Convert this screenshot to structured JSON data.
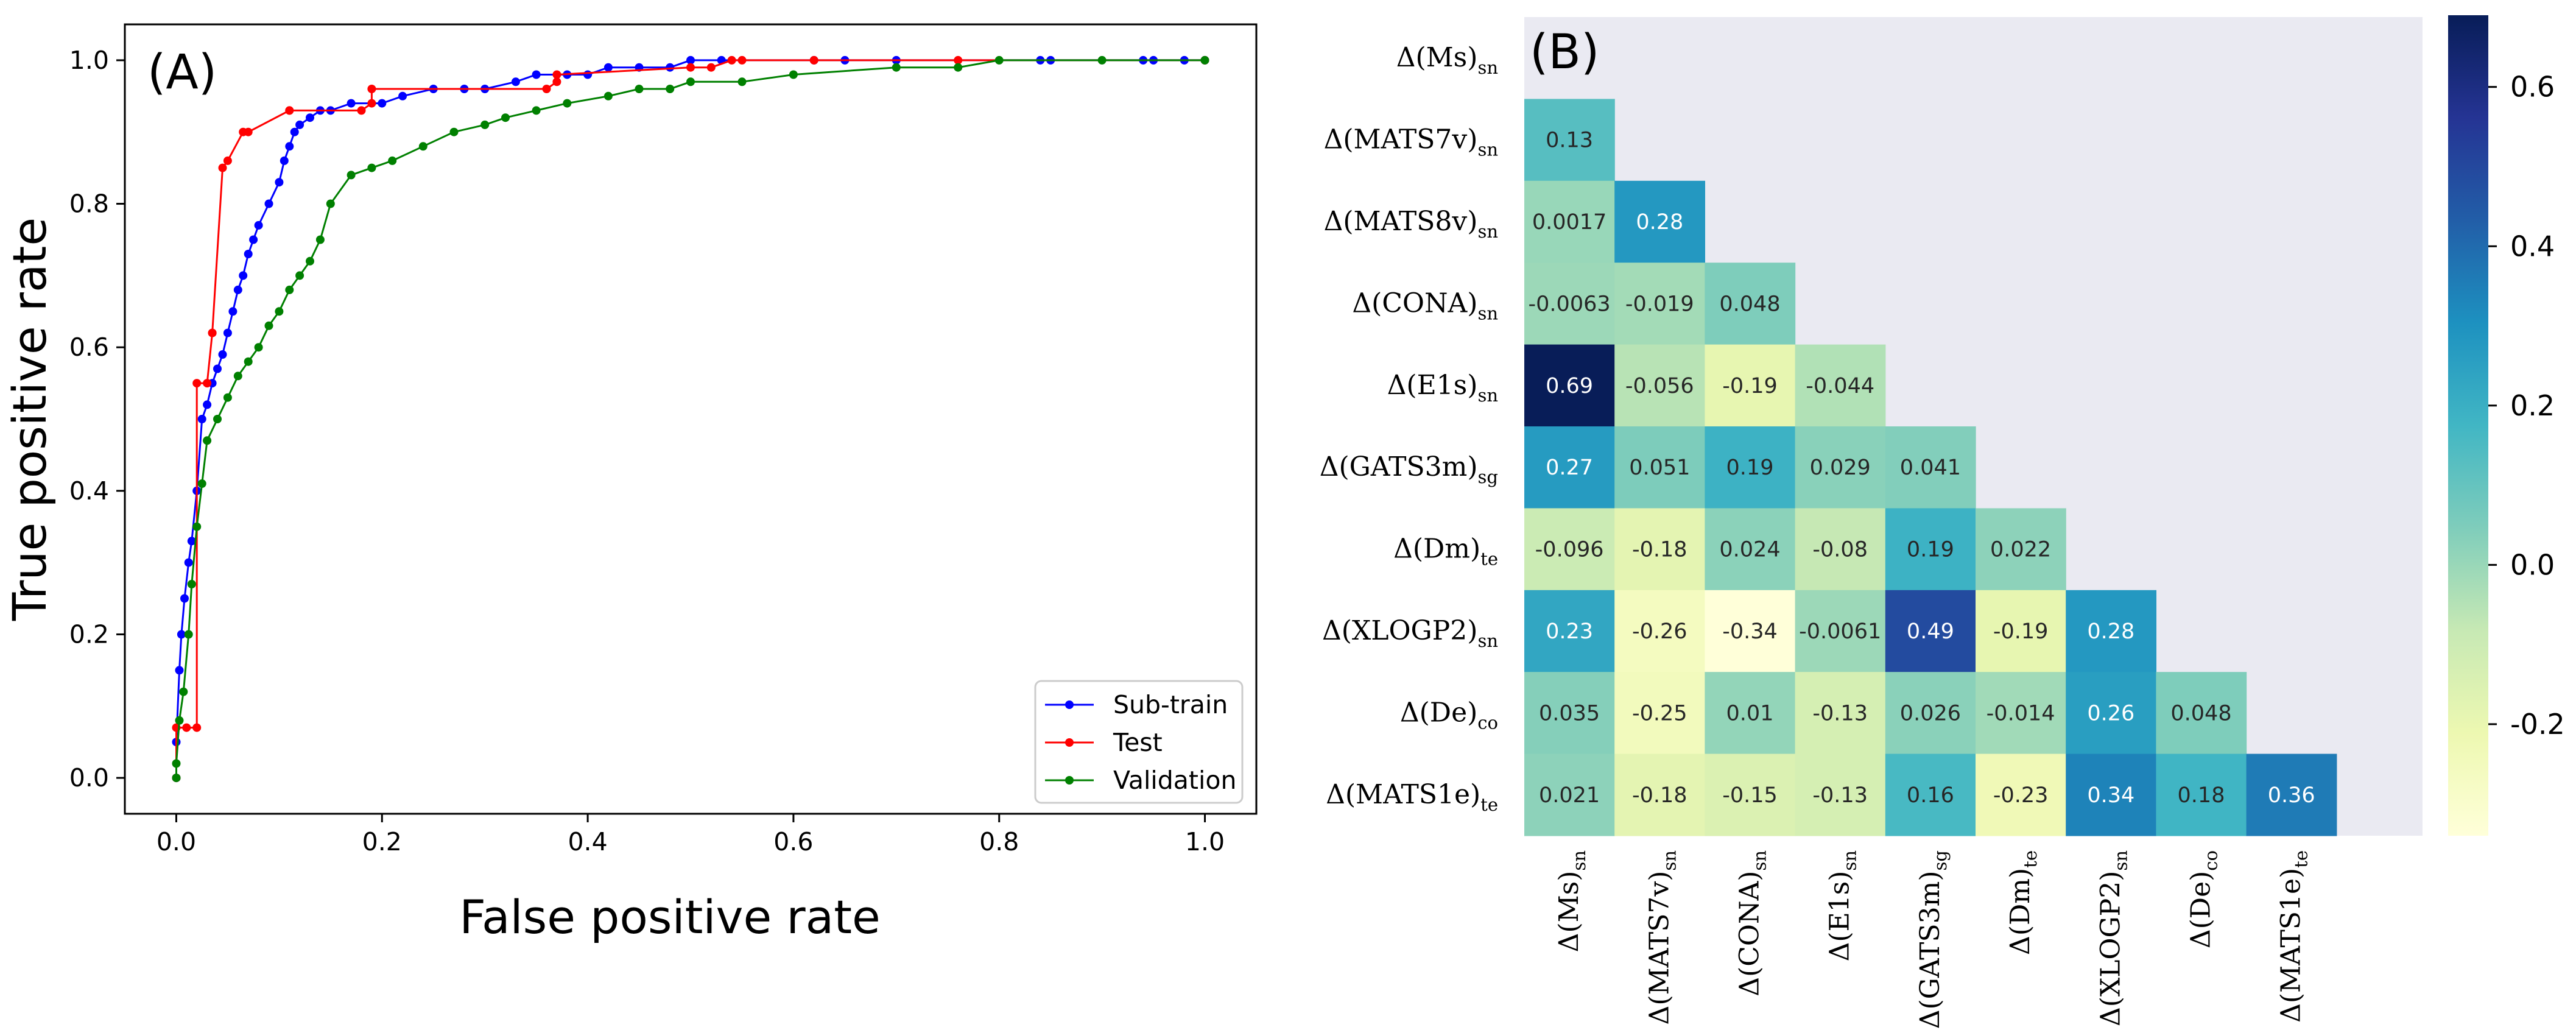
{
  "chart_data": [
    {
      "type": "line",
      "panel_label": "(A)",
      "title": "",
      "xlabel": "False positive rate",
      "ylabel": "True positive rate",
      "xlim": [
        -0.05,
        1.05
      ],
      "ylim": [
        -0.05,
        1.05
      ],
      "xticks": [
        0.0,
        0.2,
        0.4,
        0.6,
        0.8,
        1.0
      ],
      "yticks": [
        0.0,
        0.2,
        0.4,
        0.6,
        0.8,
        1.0
      ],
      "xtick_labels": [
        "0.0",
        "0.2",
        "0.4",
        "0.6",
        "0.8",
        "1.0"
      ],
      "ytick_labels": [
        "0.0",
        "0.2",
        "0.4",
        "0.6",
        "0.8",
        "1.0"
      ],
      "legend_position": "lower-right",
      "series": [
        {
          "name": "Sub-train",
          "color": "#0000ff",
          "x": [
            0.0,
            0.0,
            0.003,
            0.005,
            0.008,
            0.012,
            0.015,
            0.02,
            0.025,
            0.03,
            0.035,
            0.04,
            0.045,
            0.05,
            0.055,
            0.06,
            0.065,
            0.07,
            0.075,
            0.08,
            0.09,
            0.1,
            0.105,
            0.11,
            0.115,
            0.12,
            0.13,
            0.14,
            0.15,
            0.17,
            0.2,
            0.22,
            0.25,
            0.28,
            0.3,
            0.33,
            0.35,
            0.38,
            0.4,
            0.42,
            0.45,
            0.48,
            0.5,
            0.53,
            0.62,
            0.65,
            0.7,
            0.84,
            0.85,
            0.94,
            0.95,
            0.98,
            1.0
          ],
          "y": [
            0.0,
            0.05,
            0.15,
            0.2,
            0.25,
            0.3,
            0.33,
            0.4,
            0.5,
            0.52,
            0.55,
            0.57,
            0.59,
            0.62,
            0.65,
            0.68,
            0.7,
            0.73,
            0.75,
            0.77,
            0.8,
            0.83,
            0.86,
            0.88,
            0.9,
            0.91,
            0.92,
            0.93,
            0.93,
            0.94,
            0.94,
            0.95,
            0.96,
            0.96,
            0.96,
            0.97,
            0.98,
            0.98,
            0.98,
            0.99,
            0.99,
            0.99,
            1.0,
            1.0,
            1.0,
            1.0,
            1.0,
            1.0,
            1.0,
            1.0,
            1.0,
            1.0,
            1.0
          ]
        },
        {
          "name": "Test",
          "color": "#ff0000",
          "x": [
            0.0,
            0.0,
            0.01,
            0.02,
            0.02,
            0.03,
            0.035,
            0.035,
            0.045,
            0.05,
            0.065,
            0.07,
            0.11,
            0.11,
            0.18,
            0.19,
            0.19,
            0.36,
            0.37,
            0.37,
            0.5,
            0.52,
            0.54,
            0.55,
            0.62,
            0.76,
            1.0
          ],
          "y": [
            0.0,
            0.07,
            0.07,
            0.07,
            0.55,
            0.55,
            0.62,
            0.62,
            0.85,
            0.86,
            0.9,
            0.9,
            0.93,
            0.93,
            0.93,
            0.94,
            0.96,
            0.96,
            0.97,
            0.98,
            0.99,
            0.99,
            1.0,
            1.0,
            1.0,
            1.0,
            1.0
          ]
        },
        {
          "name": "Validation",
          "color": "#008000",
          "x": [
            0.0,
            0.0,
            0.003,
            0.007,
            0.012,
            0.015,
            0.02,
            0.025,
            0.03,
            0.04,
            0.05,
            0.06,
            0.07,
            0.08,
            0.09,
            0.1,
            0.11,
            0.12,
            0.13,
            0.14,
            0.15,
            0.17,
            0.19,
            0.21,
            0.24,
            0.27,
            0.3,
            0.32,
            0.35,
            0.38,
            0.42,
            0.45,
            0.48,
            0.5,
            0.55,
            0.6,
            0.7,
            0.76,
            0.8,
            0.9,
            1.0
          ],
          "y": [
            0.0,
            0.02,
            0.08,
            0.12,
            0.2,
            0.27,
            0.35,
            0.41,
            0.47,
            0.5,
            0.53,
            0.56,
            0.58,
            0.6,
            0.63,
            0.65,
            0.68,
            0.7,
            0.72,
            0.75,
            0.8,
            0.84,
            0.85,
            0.86,
            0.88,
            0.9,
            0.91,
            0.92,
            0.93,
            0.94,
            0.95,
            0.96,
            0.96,
            0.97,
            0.97,
            0.98,
            0.99,
            0.99,
            1.0,
            1.0,
            1.0
          ]
        }
      ]
    },
    {
      "type": "heatmap",
      "panel_label": "(B)",
      "title": "",
      "rows": [
        {
          "main": "Δ(Ms)",
          "sub": "sn"
        },
        {
          "main": "Δ(MATS7v)",
          "sub": "sn"
        },
        {
          "main": "Δ(MATS8v)",
          "sub": "sn"
        },
        {
          "main": "Δ(CONA)",
          "sub": "sn"
        },
        {
          "main": "Δ(E1s)",
          "sub": "sn"
        },
        {
          "main": "Δ(GATS3m)",
          "sub": "sg"
        },
        {
          "main": "Δ(Dm)",
          "sub": "te"
        },
        {
          "main": "Δ(XLOGP2)",
          "sub": "sn"
        },
        {
          "main": "Δ(De)",
          "sub": "co"
        },
        {
          "main": "Δ(MATS1e)",
          "sub": "te"
        }
      ],
      "columns": [
        {
          "main": "Δ(Ms)",
          "sub": "sn"
        },
        {
          "main": "Δ(MATS7v)",
          "sub": "sn"
        },
        {
          "main": "Δ(CONA)",
          "sub": "sn"
        },
        {
          "main": "Δ(E1s)",
          "sub": "sn"
        },
        {
          "main": "Δ(GATS3m)",
          "sub": "sg"
        },
        {
          "main": "Δ(Dm)",
          "sub": "te"
        },
        {
          "main": "Δ(XLOGP2)",
          "sub": "sn"
        },
        {
          "main": "Δ(De)",
          "sub": "co"
        },
        {
          "main": "Δ(MATS1e)",
          "sub": "te"
        }
      ],
      "values": [
        [],
        [
          0.13
        ],
        [
          0.0017,
          0.28
        ],
        [
          -0.0063,
          -0.019,
          0.048
        ],
        [
          0.69,
          -0.056,
          -0.19,
          -0.044
        ],
        [
          0.27,
          0.051,
          0.19,
          0.029,
          0.041
        ],
        [
          -0.096,
          -0.18,
          0.024,
          -0.08,
          0.19,
          0.022
        ],
        [
          0.23,
          -0.26,
          -0.34,
          -0.0061,
          0.49,
          -0.19,
          0.28
        ],
        [
          0.035,
          -0.25,
          0.01,
          -0.13,
          0.026,
          -0.014,
          0.26,
          0.048
        ],
        [
          0.021,
          -0.18,
          -0.15,
          -0.13,
          0.16,
          -0.23,
          0.34,
          0.18,
          0.36
        ]
      ],
      "labels": [
        [],
        [
          "0.13"
        ],
        [
          "0.0017",
          "0.28"
        ],
        [
          "-0.0063",
          "-0.019",
          "0.048"
        ],
        [
          "0.69",
          "-0.056",
          "-0.19",
          "-0.044"
        ],
        [
          "0.27",
          "0.051",
          "0.19",
          "0.029",
          "0.041"
        ],
        [
          "-0.096",
          "-0.18",
          "0.024",
          "-0.08",
          "0.19",
          "0.022"
        ],
        [
          "0.23",
          "-0.26",
          "-0.34",
          "-0.0061",
          "0.49",
          "-0.19",
          "0.28"
        ],
        [
          "0.035",
          "-0.25",
          "0.01",
          "-0.13",
          "0.026",
          "-0.014",
          "0.26",
          "0.048"
        ],
        [
          "0.021",
          "-0.18",
          "-0.15",
          "-0.13",
          "0.16",
          "-0.23",
          "0.34",
          "0.18",
          "0.36"
        ]
      ],
      "colormap": "YlGnBu",
      "color_range": [
        -0.34,
        0.69
      ],
      "colorbar_ticks": [
        0.6,
        0.4,
        0.2,
        0.0,
        -0.2
      ],
      "colorbar_tick_labels": [
        "0.6",
        "0.4",
        "0.2",
        "0.0",
        "-0.2"
      ],
      "masked_background": "#eaeaf2"
    }
  ]
}
